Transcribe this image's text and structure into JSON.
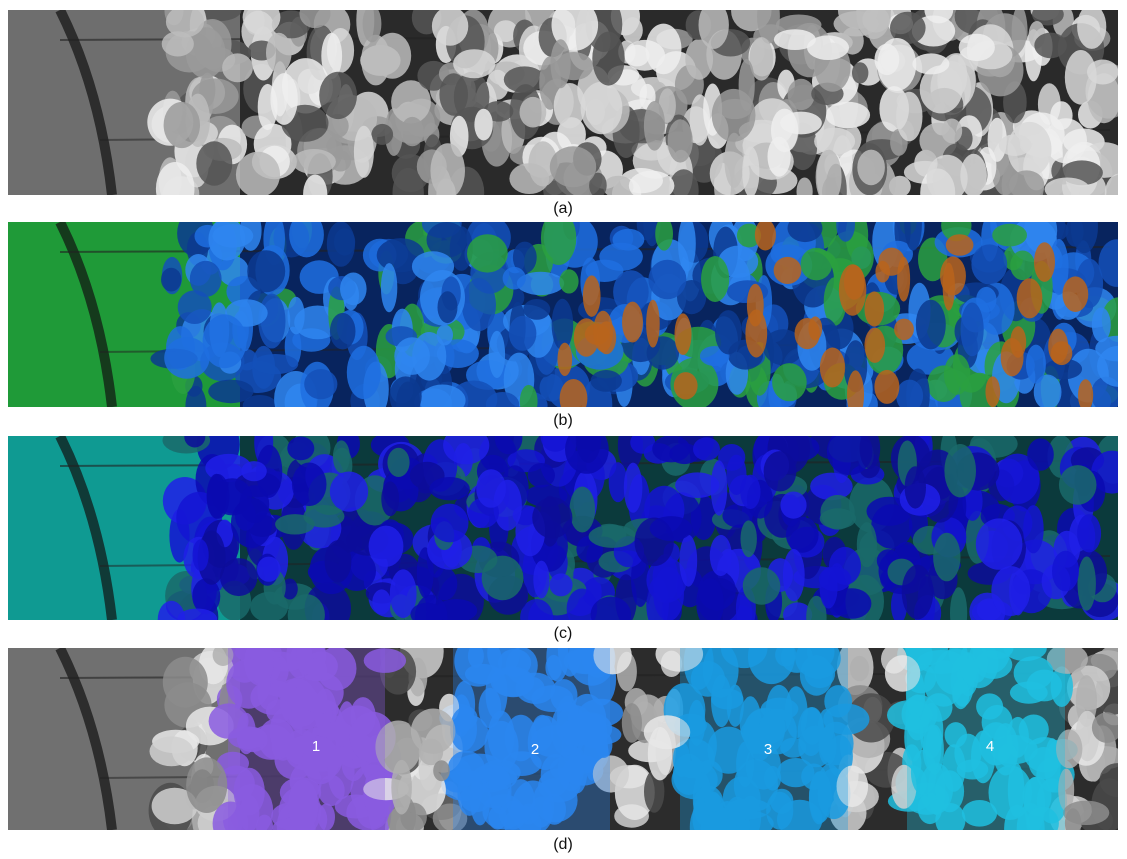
{
  "figure": {
    "panels": [
      {
        "caption": "(a)"
      },
      {
        "caption": "(b)"
      },
      {
        "caption": "(c)"
      },
      {
        "caption": "(d)",
        "regions": [
          "1",
          "2",
          "3",
          "4"
        ]
      }
    ]
  }
}
